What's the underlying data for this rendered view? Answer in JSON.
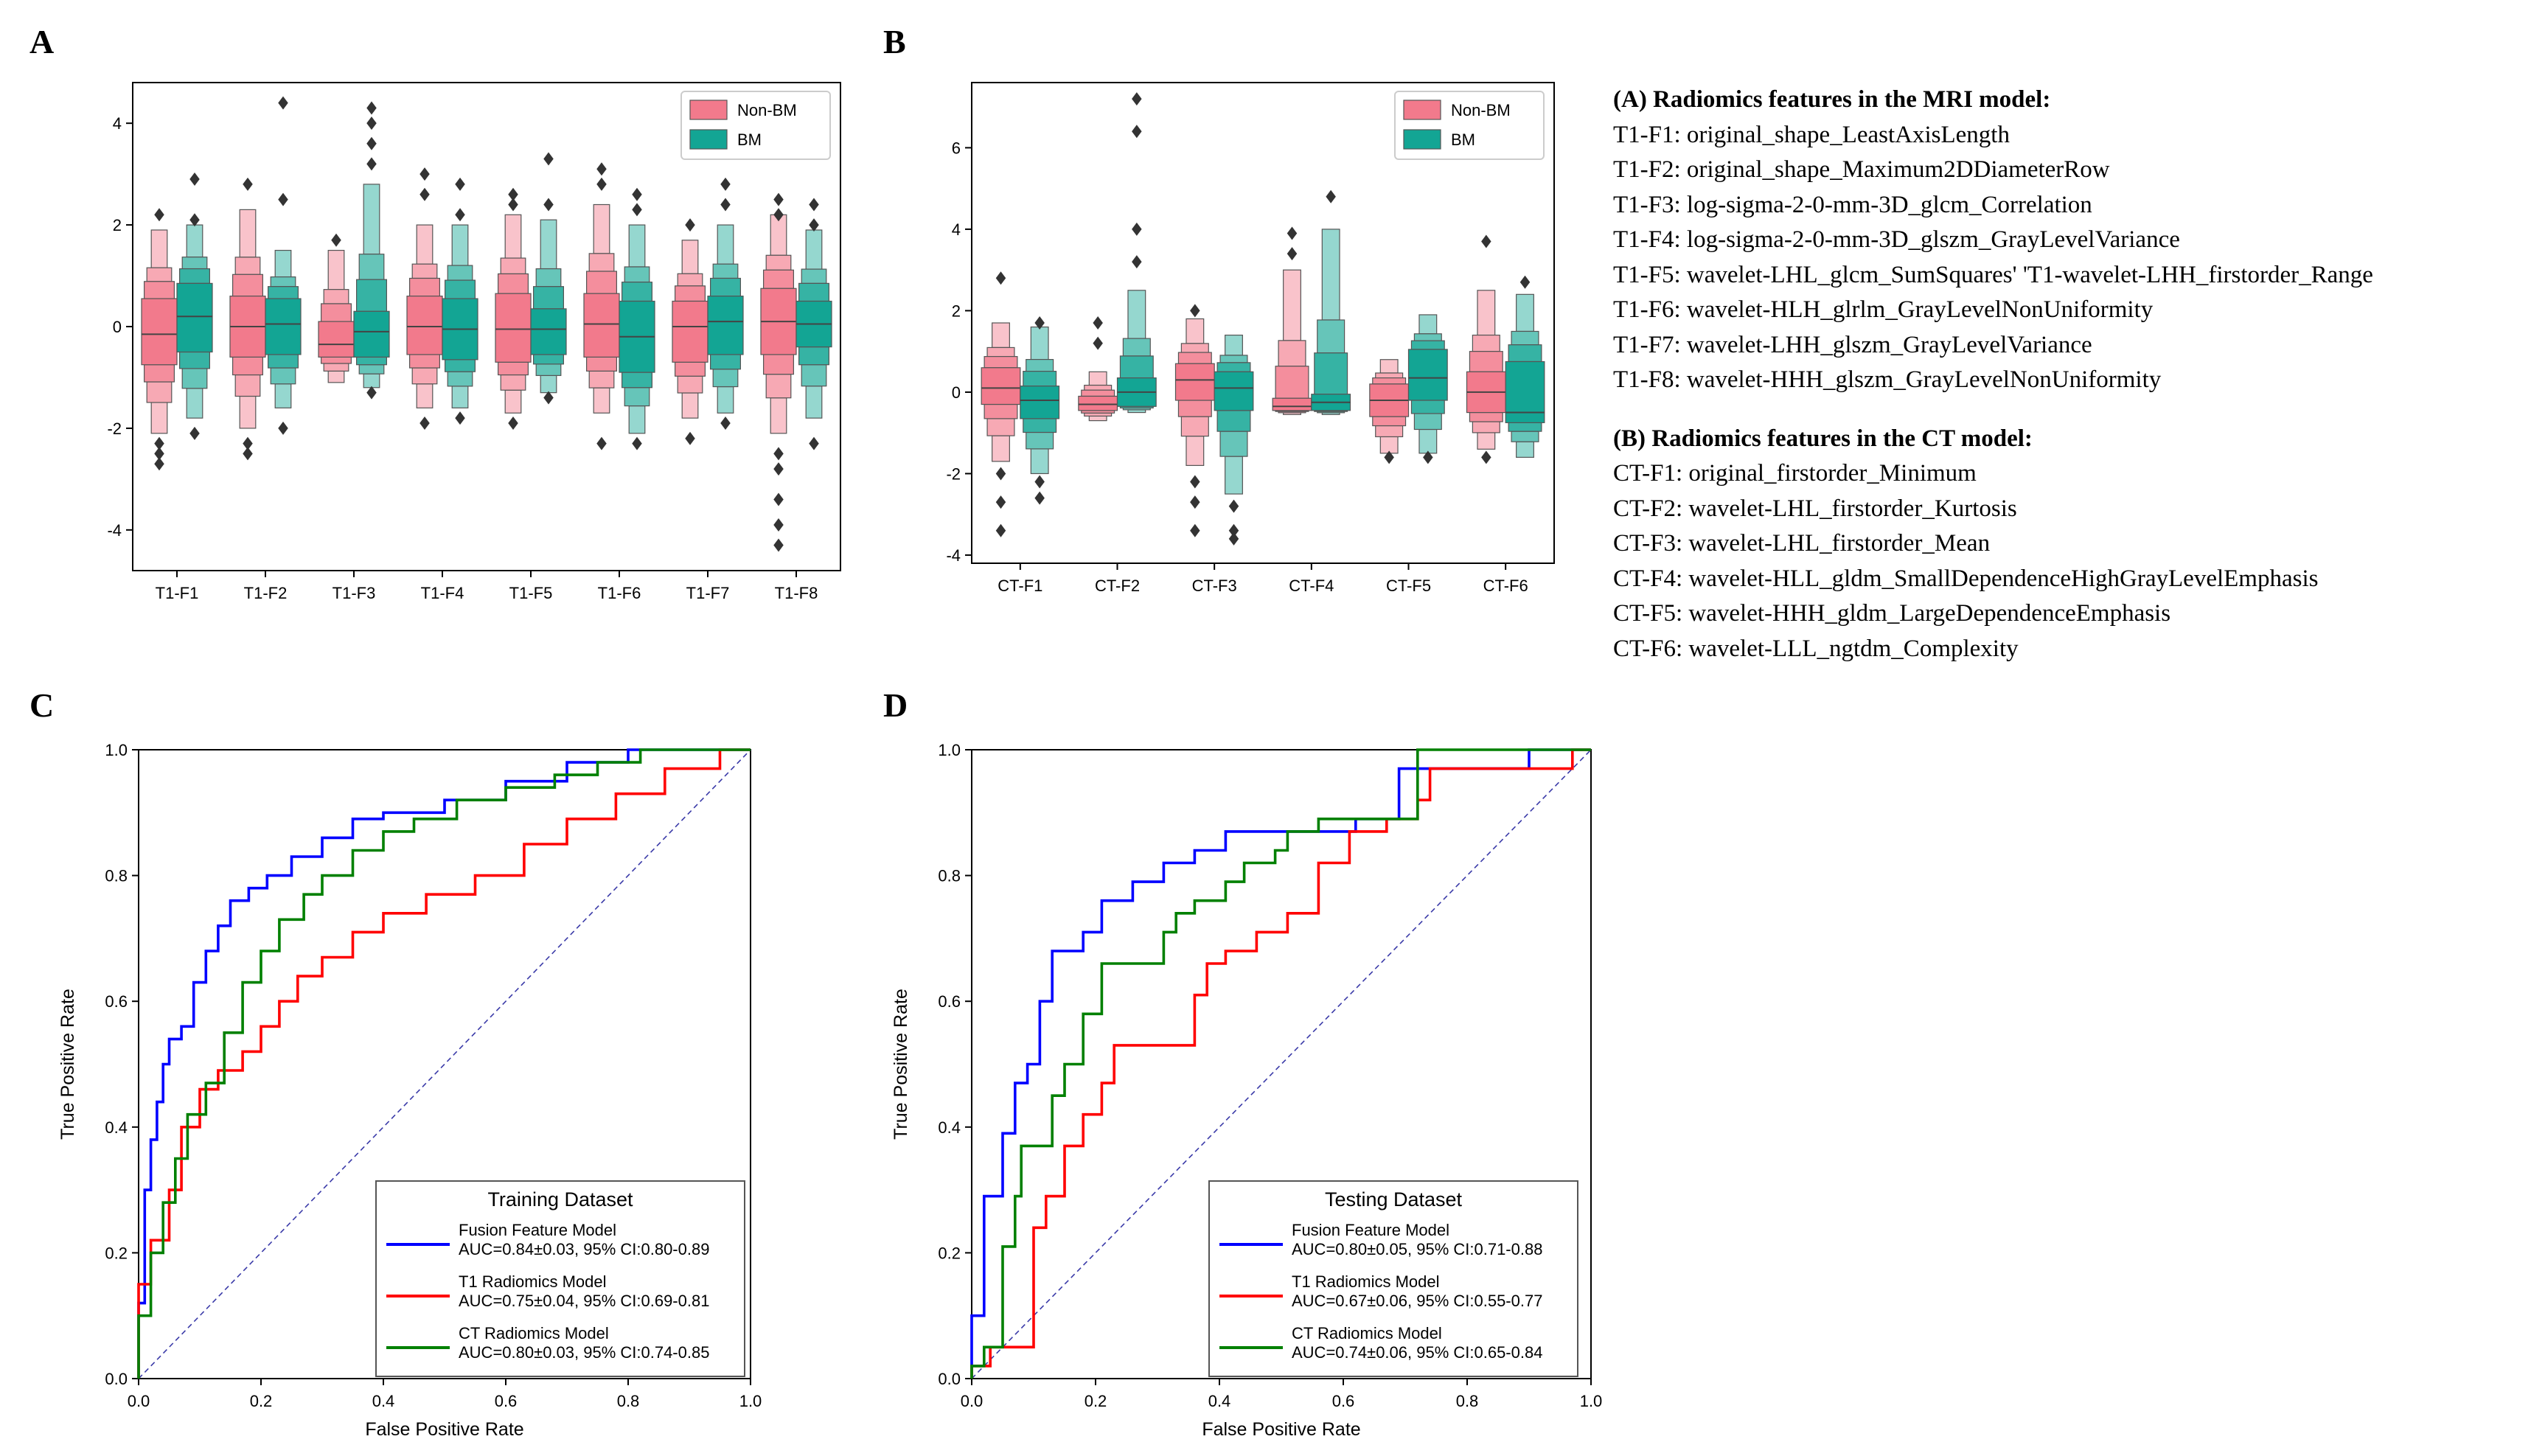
{
  "panels": {
    "A": "A",
    "B": "B",
    "C": "C",
    "D": "D"
  },
  "colors": {
    "non_bm": "#f27a8c",
    "bm": "#13a594",
    "fusion": "#0000ff",
    "t1": "#ff0000",
    "ct": "#008000",
    "chance": "#3a3aa8"
  },
  "legend_box": {
    "non_bm": "Non-BM",
    "bm": "BM"
  },
  "features": {
    "mri_header": "(A) Radiomics features in the MRI model:",
    "mri": [
      "T1-F1: original_shape_LeastAxisLength",
      "T1-F2: original_shape_Maximum2DDiameterRow",
      "T1-F3: log-sigma-2-0-mm-3D_glcm_Correlation",
      "T1-F4: log-sigma-2-0-mm-3D_glszm_GrayLevelVariance",
      "T1-F5: wavelet-LHL_glcm_SumSquares' 'T1-wavelet-LHH_firstorder_Range",
      "T1-F6: wavelet-HLH_glrlm_GrayLevelNonUniformity",
      "T1-F7: wavelet-LHH_glszm_GrayLevelVariance",
      "T1-F8: wavelet-HHH_glszm_GrayLevelNonUniformity"
    ],
    "ct_header": "(B) Radiomics features in the CT model:",
    "ct": [
      "CT-F1: original_firstorder_Minimum",
      "CT-F2: wavelet-LHL_firstorder_Kurtosis",
      "CT-F3: wavelet-LHL_firstorder_Mean",
      "CT-F4: wavelet-HLL_gldm_SmallDependenceHighGrayLevelEmphasis",
      "CT-F5: wavelet-HHH_gldm_LargeDependenceEmphasis",
      "CT-F6: wavelet-LLL_ngtdm_Complexity"
    ]
  },
  "chart_data": [
    {
      "id": "A",
      "type": "boxen",
      "title": "",
      "xlabel": "",
      "ylabel": "",
      "ylim": [
        -4.8,
        4.8
      ],
      "yticks": [
        -4,
        -2,
        0,
        2,
        4
      ],
      "legend": [
        "Non-BM",
        "BM"
      ],
      "categories": [
        "T1-F1",
        "T1-F2",
        "T1-F3",
        "T1-F4",
        "T1-F5",
        "T1-F6",
        "T1-F7",
        "T1-F8"
      ],
      "series": [
        {
          "name": "Non-BM",
          "medians": [
            -0.15,
            0.0,
            -0.35,
            0.0,
            -0.05,
            0.05,
            0.0,
            0.1
          ],
          "q1": [
            -0.75,
            -0.6,
            -0.6,
            -0.55,
            -0.7,
            -0.6,
            -0.7,
            -0.55
          ],
          "q3": [
            0.55,
            0.6,
            0.1,
            0.6,
            0.65,
            0.65,
            0.5,
            0.75
          ],
          "lo": [
            -2.1,
            -2.0,
            -1.1,
            -1.6,
            -1.7,
            -1.7,
            -1.8,
            -2.1
          ],
          "hi": [
            1.9,
            2.3,
            1.5,
            2.0,
            2.2,
            2.4,
            1.7,
            2.2
          ],
          "outliers": [
            [
              -2.3,
              -2.5,
              -2.7,
              2.2
            ],
            [
              -2.3,
              -2.5,
              2.8
            ],
            [
              1.7
            ],
            [
              -1.9,
              2.6,
              3.0
            ],
            [
              -1.9,
              2.6,
              2.4
            ],
            [
              -2.3,
              2.8,
              3.1
            ],
            [
              -2.2,
              2.0
            ],
            [
              -2.5,
              -2.8,
              -3.4,
              -3.9,
              -4.3,
              2.2,
              2.5
            ]
          ]
        },
        {
          "name": "BM",
          "medians": [
            0.2,
            0.05,
            -0.1,
            -0.05,
            -0.05,
            -0.2,
            0.1,
            0.05
          ],
          "q1": [
            -0.5,
            -0.55,
            -0.6,
            -0.65,
            -0.55,
            -0.9,
            -0.55,
            -0.4
          ],
          "q3": [
            0.85,
            0.55,
            0.3,
            0.55,
            0.35,
            0.5,
            0.6,
            0.5
          ],
          "lo": [
            -1.8,
            -1.6,
            -1.2,
            -1.6,
            -1.3,
            -2.1,
            -1.7,
            -1.8
          ],
          "hi": [
            2.0,
            1.5,
            2.8,
            2.0,
            2.1,
            2.0,
            2.0,
            1.9
          ],
          "outliers": [
            [
              -2.1,
              2.1,
              2.9
            ],
            [
              -2.0,
              2.5,
              4.4
            ],
            [
              -1.3,
              3.2,
              3.6,
              4.0,
              4.3
            ],
            [
              -1.8,
              2.2,
              2.8
            ],
            [
              -1.4,
              2.4,
              3.3
            ],
            [
              -2.3,
              2.3,
              2.6
            ],
            [
              -1.9,
              2.4,
              2.8
            ],
            [
              -2.3,
              2.0,
              2.4
            ]
          ]
        }
      ]
    },
    {
      "id": "B",
      "type": "boxen",
      "title": "",
      "xlabel": "",
      "ylabel": "",
      "ylim": [
        -4.2,
        7.6
      ],
      "yticks": [
        -4,
        -2,
        0,
        2,
        4,
        6
      ],
      "legend": [
        "Non-BM",
        "BM"
      ],
      "categories": [
        "CT-F1",
        "CT-F2",
        "CT-F3",
        "CT-F4",
        "CT-F5",
        "CT-F6"
      ],
      "series": [
        {
          "name": "Non-BM",
          "medians": [
            0.1,
            -0.3,
            0.3,
            -0.35,
            -0.2,
            0.0
          ],
          "q1": [
            -0.3,
            -0.45,
            -0.2,
            -0.45,
            -0.6,
            -0.5
          ],
          "q3": [
            0.6,
            -0.1,
            0.7,
            -0.15,
            0.2,
            0.5
          ],
          "lo": [
            -1.7,
            -0.7,
            -1.8,
            -0.55,
            -1.5,
            -1.4
          ],
          "hi": [
            1.7,
            0.5,
            1.8,
            3.0,
            0.8,
            2.5
          ],
          "outliers": [
            [
              -2.0,
              -2.7,
              -3.4,
              2.8
            ],
            [
              1.2,
              1.7
            ],
            [
              -2.2,
              -2.7,
              -3.4,
              2.0
            ],
            [
              3.4,
              3.9
            ],
            [
              -1.6
            ],
            [
              -1.6,
              3.7
            ]
          ]
        },
        {
          "name": "BM",
          "medians": [
            -0.2,
            0.0,
            0.1,
            -0.25,
            0.35,
            -0.5
          ],
          "q1": [
            -0.65,
            -0.35,
            -0.45,
            -0.45,
            -0.2,
            -0.75
          ],
          "q3": [
            0.15,
            0.35,
            0.5,
            -0.05,
            1.05,
            0.75
          ],
          "lo": [
            -2.0,
            -0.5,
            -2.5,
            -0.55,
            -1.5,
            -1.6
          ],
          "hi": [
            1.6,
            2.5,
            1.4,
            4.0,
            1.9,
            2.4
          ],
          "outliers": [
            [
              -2.2,
              -2.6,
              1.7
            ],
            [
              3.2,
              4.0,
              6.4,
              7.2
            ],
            [
              -2.8,
              -3.4,
              -3.6
            ],
            [
              4.8
            ],
            [
              -1.6
            ],
            [
              2.7
            ]
          ]
        }
      ]
    },
    {
      "id": "C",
      "type": "line",
      "title": "",
      "xlabel": "False Positive Rate",
      "ylabel": "True Positive Rate",
      "xlim": [
        0.0,
        1.0
      ],
      "ylim": [
        0.0,
        1.0
      ],
      "xticks": [
        "0.0",
        "0.2",
        "0.4",
        "0.6",
        "0.8",
        "1.0"
      ],
      "yticks": [
        "0.0",
        "0.2",
        "0.4",
        "0.6",
        "0.8",
        "1.0"
      ],
      "legend_title": "Training Dataset",
      "series": [
        {
          "name": "Fusion Feature Model",
          "auc": "AUC=0.84±0.03, 95% CI:0.80-0.89",
          "x": [
            0,
            0,
            0.01,
            0.01,
            0.02,
            0.02,
            0.03,
            0.03,
            0.04,
            0.04,
            0.05,
            0.05,
            0.07,
            0.07,
            0.09,
            0.09,
            0.11,
            0.11,
            0.13,
            0.13,
            0.15,
            0.15,
            0.18,
            0.18,
            0.21,
            0.21,
            0.25,
            0.25,
            0.3,
            0.3,
            0.35,
            0.35,
            0.4,
            0.4,
            0.5,
            0.5,
            0.6,
            0.6,
            0.7,
            0.7,
            0.8,
            0.8,
            1.0
          ],
          "y": [
            0,
            0.12,
            0.12,
            0.3,
            0.3,
            0.38,
            0.38,
            0.44,
            0.44,
            0.5,
            0.5,
            0.54,
            0.54,
            0.56,
            0.56,
            0.63,
            0.63,
            0.68,
            0.68,
            0.72,
            0.72,
            0.76,
            0.76,
            0.78,
            0.78,
            0.8,
            0.8,
            0.83,
            0.83,
            0.86,
            0.86,
            0.89,
            0.89,
            0.9,
            0.9,
            0.92,
            0.92,
            0.95,
            0.95,
            0.98,
            0.98,
            1.0,
            1.0
          ]
        },
        {
          "name": "T1 Radiomics Model",
          "auc": "AUC=0.75±0.04, 95% CI:0.69-0.81",
          "x": [
            0,
            0,
            0.02,
            0.02,
            0.05,
            0.05,
            0.07,
            0.07,
            0.1,
            0.1,
            0.13,
            0.13,
            0.17,
            0.17,
            0.2,
            0.2,
            0.23,
            0.23,
            0.26,
            0.26,
            0.3,
            0.3,
            0.35,
            0.35,
            0.4,
            0.4,
            0.47,
            0.47,
            0.55,
            0.55,
            0.63,
            0.63,
            0.7,
            0.7,
            0.78,
            0.78,
            0.86,
            0.86,
            0.95,
            0.95,
            1.0
          ],
          "y": [
            0,
            0.15,
            0.15,
            0.22,
            0.22,
            0.3,
            0.3,
            0.4,
            0.4,
            0.46,
            0.46,
            0.49,
            0.49,
            0.52,
            0.52,
            0.56,
            0.56,
            0.6,
            0.6,
            0.64,
            0.64,
            0.67,
            0.67,
            0.71,
            0.71,
            0.74,
            0.74,
            0.77,
            0.77,
            0.8,
            0.8,
            0.85,
            0.85,
            0.89,
            0.89,
            0.93,
            0.93,
            0.97,
            0.97,
            1.0,
            1.0
          ]
        },
        {
          "name": "CT Radiomics Model",
          "auc": "AUC=0.80±0.03, 95% CI:0.74-0.85",
          "x": [
            0,
            0,
            0.02,
            0.02,
            0.04,
            0.04,
            0.06,
            0.06,
            0.08,
            0.08,
            0.11,
            0.11,
            0.14,
            0.14,
            0.17,
            0.17,
            0.2,
            0.2,
            0.23,
            0.23,
            0.27,
            0.27,
            0.3,
            0.3,
            0.35,
            0.35,
            0.4,
            0.4,
            0.45,
            0.45,
            0.52,
            0.52,
            0.6,
            0.6,
            0.68,
            0.68,
            0.75,
            0.75,
            0.82,
            0.82,
            1.0
          ],
          "y": [
            0,
            0.1,
            0.1,
            0.2,
            0.2,
            0.28,
            0.28,
            0.35,
            0.35,
            0.42,
            0.42,
            0.47,
            0.47,
            0.55,
            0.55,
            0.63,
            0.63,
            0.68,
            0.68,
            0.73,
            0.73,
            0.77,
            0.77,
            0.8,
            0.8,
            0.84,
            0.84,
            0.87,
            0.87,
            0.89,
            0.89,
            0.92,
            0.92,
            0.94,
            0.94,
            0.96,
            0.96,
            0.98,
            0.98,
            1.0,
            1.0
          ]
        }
      ]
    },
    {
      "id": "D",
      "type": "line",
      "title": "",
      "xlabel": "False Positive Rate",
      "ylabel": "True Positive Rate",
      "xlim": [
        0.0,
        1.0
      ],
      "ylim": [
        0.0,
        1.0
      ],
      "xticks": [
        "0.0",
        "0.2",
        "0.4",
        "0.6",
        "0.8",
        "1.0"
      ],
      "yticks": [
        "0.0",
        "0.2",
        "0.4",
        "0.6",
        "0.8",
        "1.0"
      ],
      "legend_title": "Testing Dataset",
      "series": [
        {
          "name": "Fusion Feature Model",
          "auc": "AUC=0.80±0.05, 95% CI:0.71-0.88",
          "x": [
            0,
            0,
            0.02,
            0.02,
            0.05,
            0.05,
            0.07,
            0.07,
            0.09,
            0.09,
            0.11,
            0.11,
            0.13,
            0.13,
            0.18,
            0.18,
            0.21,
            0.21,
            0.26,
            0.26,
            0.31,
            0.31,
            0.36,
            0.36,
            0.41,
            0.41,
            0.46,
            0.46,
            0.51,
            0.51,
            0.62,
            0.62,
            0.69,
            0.69,
            0.72,
            0.72,
            0.9,
            0.9,
            1.0
          ],
          "y": [
            0,
            0.1,
            0.1,
            0.29,
            0.29,
            0.39,
            0.39,
            0.47,
            0.47,
            0.5,
            0.5,
            0.6,
            0.6,
            0.68,
            0.68,
            0.71,
            0.71,
            0.76,
            0.76,
            0.79,
            0.79,
            0.82,
            0.82,
            0.84,
            0.84,
            0.87,
            0.87,
            0.87,
            0.87,
            0.87,
            0.87,
            0.89,
            0.89,
            0.97,
            0.97,
            0.97,
            0.97,
            1.0,
            1.0
          ]
        },
        {
          "name": "T1 Radiomics Model",
          "auc": "AUC=0.67±0.06, 95% CI:0.55-0.77",
          "x": [
            0,
            0,
            0.03,
            0.03,
            0.1,
            0.1,
            0.12,
            0.12,
            0.15,
            0.15,
            0.18,
            0.18,
            0.21,
            0.21,
            0.23,
            0.23,
            0.36,
            0.36,
            0.38,
            0.38,
            0.41,
            0.41,
            0.46,
            0.46,
            0.51,
            0.51,
            0.56,
            0.56,
            0.61,
            0.61,
            0.67,
            0.67,
            0.72,
            0.72,
            0.74,
            0.74,
            0.97,
            0.97,
            1.0
          ],
          "y": [
            0,
            0.02,
            0.02,
            0.05,
            0.05,
            0.24,
            0.24,
            0.29,
            0.29,
            0.37,
            0.37,
            0.42,
            0.42,
            0.47,
            0.47,
            0.53,
            0.53,
            0.61,
            0.61,
            0.66,
            0.66,
            0.68,
            0.68,
            0.71,
            0.71,
            0.74,
            0.74,
            0.82,
            0.82,
            0.87,
            0.87,
            0.89,
            0.89,
            0.92,
            0.92,
            0.97,
            0.97,
            1.0,
            1.0
          ]
        },
        {
          "name": "CT Radiomics Model",
          "auc": "AUC=0.74±0.06, 95% CI:0.65-0.84",
          "x": [
            0,
            0,
            0.02,
            0.02,
            0.05,
            0.05,
            0.07,
            0.07,
            0.08,
            0.08,
            0.13,
            0.13,
            0.15,
            0.15,
            0.18,
            0.18,
            0.21,
            0.21,
            0.31,
            0.31,
            0.33,
            0.33,
            0.36,
            0.36,
            0.41,
            0.41,
            0.44,
            0.44,
            0.49,
            0.49,
            0.51,
            0.51,
            0.56,
            0.56,
            0.72,
            0.72,
            1.0
          ],
          "y": [
            0,
            0.02,
            0.02,
            0.05,
            0.05,
            0.21,
            0.21,
            0.29,
            0.29,
            0.37,
            0.37,
            0.45,
            0.45,
            0.5,
            0.5,
            0.58,
            0.58,
            0.66,
            0.66,
            0.71,
            0.71,
            0.74,
            0.74,
            0.76,
            0.76,
            0.79,
            0.79,
            0.82,
            0.82,
            0.84,
            0.84,
            0.87,
            0.87,
            0.89,
            0.89,
            1.0,
            1.0
          ]
        }
      ]
    }
  ]
}
